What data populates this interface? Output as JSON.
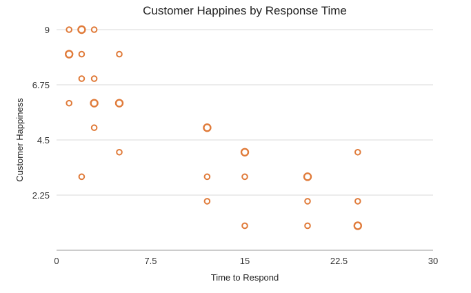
{
  "chart_data": {
    "type": "scatter",
    "title": "Customer Happines by Response Time",
    "xlabel": "Time to Respond",
    "ylabel": "Customer Happiness",
    "xlim": [
      0,
      30
    ],
    "ylim": [
      0,
      9
    ],
    "x_ticks": [
      "0",
      "7.5",
      "15",
      "22.5",
      "30"
    ],
    "y_ticks": [
      "2.25",
      "4.5",
      "6.75",
      "9"
    ],
    "grid": "horizontal",
    "legend": "none",
    "marker_color": "#e07b3a",
    "points": [
      {
        "x": 1,
        "y": 9,
        "size": "small"
      },
      {
        "x": 2,
        "y": 9,
        "size": "large"
      },
      {
        "x": 3,
        "y": 9,
        "size": "small"
      },
      {
        "x": 1,
        "y": 8,
        "size": "large"
      },
      {
        "x": 2,
        "y": 8,
        "size": "small"
      },
      {
        "x": 5,
        "y": 8,
        "size": "small"
      },
      {
        "x": 2,
        "y": 7,
        "size": "small"
      },
      {
        "x": 3,
        "y": 7,
        "size": "small"
      },
      {
        "x": 1,
        "y": 6,
        "size": "small"
      },
      {
        "x": 3,
        "y": 6,
        "size": "large"
      },
      {
        "x": 5,
        "y": 6,
        "size": "large"
      },
      {
        "x": 3,
        "y": 5,
        "size": "small"
      },
      {
        "x": 12,
        "y": 5,
        "size": "large"
      },
      {
        "x": 5,
        "y": 4,
        "size": "small"
      },
      {
        "x": 15,
        "y": 4,
        "size": "large"
      },
      {
        "x": 24,
        "y": 4,
        "size": "small"
      },
      {
        "x": 2,
        "y": 3,
        "size": "small"
      },
      {
        "x": 12,
        "y": 3,
        "size": "small"
      },
      {
        "x": 15,
        "y": 3,
        "size": "small"
      },
      {
        "x": 20,
        "y": 3,
        "size": "large"
      },
      {
        "x": 12,
        "y": 2,
        "size": "small"
      },
      {
        "x": 20,
        "y": 2,
        "size": "small"
      },
      {
        "x": 24,
        "y": 2,
        "size": "small"
      },
      {
        "x": 15,
        "y": 1,
        "size": "small"
      },
      {
        "x": 20,
        "y": 1,
        "size": "small"
      },
      {
        "x": 24,
        "y": 1,
        "size": "large"
      }
    ]
  }
}
